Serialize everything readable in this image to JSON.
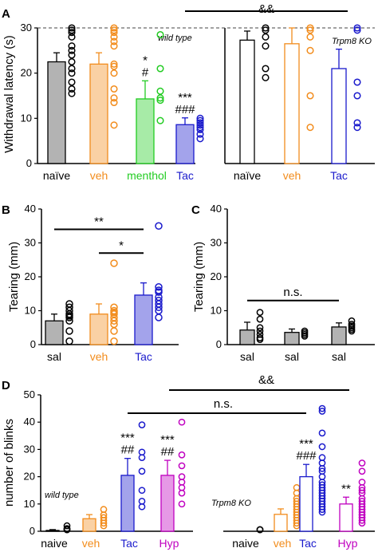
{
  "panels": {
    "A": {
      "label": "A",
      "ylabel": "Withdrawal latency (s)",
      "ylim": [
        0,
        30
      ],
      "yticks": [
        "0",
        "10",
        "20",
        "30"
      ],
      "ceiling_value": 30,
      "sig_top": "&&",
      "groups": [
        {
          "note": "wild type",
          "categories": [
            {
              "name": "naïve",
              "color": "#000000",
              "mean": 22.5,
              "sem": 2.0,
              "points": [
                30,
                29.5,
                29,
                28,
                26,
                25,
                24,
                22.5,
                21,
                20,
                18,
                16.5,
                15.5
              ],
              "sig": [],
              "filled": true
            },
            {
              "name": "veh",
              "color": "#f28c1c",
              "mean": 22,
              "sem": 2.5,
              "points": [
                30,
                29.5,
                29,
                28,
                27,
                26,
                22,
                21.5,
                20,
                16.5,
                14.5,
                13.5,
                8.5
              ],
              "sig": [],
              "filled": true
            },
            {
              "name": "menthol",
              "color": "#22cc22",
              "mean": 14.3,
              "sem": 4.0,
              "points": [
                28.5,
                21,
                16,
                14.5,
                14,
                9.5
              ],
              "sig": [
                "*",
                "#"
              ],
              "filled": true
            },
            {
              "name": "Tac",
              "color": "#1a1acc",
              "mean": 8.6,
              "sem": 1.5,
              "points": [
                10,
                9.5,
                9,
                8.5,
                8,
                7.5,
                6.5,
                5.5
              ],
              "sig": [
                "***",
                "###"
              ],
              "filled": true
            }
          ]
        },
        {
          "note": "Trpm8 KO",
          "categories": [
            {
              "name": "naïve",
              "color": "#000000",
              "mean": 27.3,
              "sem": 2.0,
              "points": [
                30,
                29.5,
                28,
                26,
                21,
                19
              ],
              "sig": [],
              "filled": false
            },
            {
              "name": "veh",
              "color": "#f28c1c",
              "mean": 26.5,
              "sem": 3.5,
              "points": [
                30,
                29.5,
                28,
                25,
                15,
                8
              ],
              "sig": [],
              "filled": false
            },
            {
              "name": "Tac",
              "color": "#1a1acc",
              "mean": 21,
              "sem": 4.3,
              "points": [
                30,
                29.5,
                18,
                15,
                9,
                8
              ],
              "sig": [],
              "filled": false
            }
          ]
        }
      ]
    },
    "B": {
      "label": "B",
      "ylabel": "Tearing (mm)",
      "ylim": [
        0,
        40
      ],
      "yticks": [
        "0",
        "10",
        "20",
        "30",
        "40"
      ],
      "categories": [
        {
          "name": "sal",
          "color": "#000000",
          "mean": 7,
          "sem": 2.0,
          "points": [
            12,
            11,
            10,
            9,
            8.5,
            8,
            7,
            4,
            1
          ],
          "filled": true
        },
        {
          "name": "veh",
          "color": "#f28c1c",
          "mean": 9,
          "sem": 3.0,
          "points": [
            24,
            11,
            10,
            9.5,
            9,
            8,
            7,
            6,
            4,
            1
          ],
          "filled": true
        },
        {
          "name": "Tac",
          "color": "#1a1acc",
          "mean": 14.6,
          "sem": 3.6,
          "points": [
            35,
            17,
            16,
            15.5,
            14,
            13,
            12,
            11,
            10,
            8
          ],
          "filled": true
        }
      ],
      "brackets": [
        {
          "text": "**",
          "from": 0,
          "to": 2,
          "y": 34
        },
        {
          "text": "*",
          "from": 1,
          "to": 2,
          "y": 27
        }
      ]
    },
    "C": {
      "label": "C",
      "ylabel": "Tearing (mm)",
      "ylim": [
        0,
        40
      ],
      "yticks": [
        "0",
        "10",
        "20",
        "30",
        "40"
      ],
      "categories": [
        {
          "name": "sal",
          "color": "#000000",
          "mean": 4.3,
          "sem": 2.3,
          "points": [
            9.5,
            7.5,
            5,
            4,
            3,
            2,
            1.5
          ],
          "filled": true
        },
        {
          "name": "sal",
          "color": "#000000",
          "mean": 3.6,
          "sem": 1.0,
          "points": [
            4,
            3.5,
            3,
            2.5
          ],
          "filled": true
        },
        {
          "name": "sal",
          "color": "#000000",
          "mean": 5.2,
          "sem": 1.2,
          "points": [
            7,
            6,
            5.5,
            5,
            4.5,
            4
          ],
          "filled": true
        }
      ],
      "brackets": [
        {
          "text": "n.s.",
          "from": 0,
          "to": 2,
          "y": 13
        }
      ]
    },
    "D": {
      "label": "D",
      "ylabel": "number of blinks",
      "ylim": [
        0,
        50
      ],
      "yticks": [
        "0",
        "10",
        "20",
        "30",
        "40",
        "50"
      ],
      "top_brackets": [
        {
          "text": "&&"
        },
        {
          "text": "n.s."
        }
      ],
      "groups": [
        {
          "note": "wild type",
          "categories": [
            {
              "name": "naive",
              "color": "#000000",
              "mean": 0.3,
              "sem": 0.3,
              "points": [
                2,
                1,
                0.5,
                0
              ],
              "sig": [],
              "filled": true
            },
            {
              "name": "veh",
              "color": "#f28c1c",
              "mean": 4.6,
              "sem": 1.5,
              "points": [
                8,
                6,
                5,
                4,
                3,
                2
              ],
              "sig": [],
              "filled": true
            },
            {
              "name": "Tac",
              "color": "#1a1acc",
              "mean": 20.5,
              "sem": 6.2,
              "points": [
                39,
                29,
                27,
                22,
                15,
                11,
                9
              ],
              "sig": [
                "***",
                "##"
              ],
              "filled": true
            },
            {
              "name": "Hyp",
              "color": "#c000c0",
              "mean": 20.5,
              "sem": 5.5,
              "points": [
                40,
                28,
                24,
                20,
                18,
                16,
                14,
                10
              ],
              "sig": [
                "***",
                "##"
              ],
              "filled": true
            }
          ]
        },
        {
          "note": "Trpm8 KO",
          "categories": [
            {
              "name": "naive",
              "color": "#000000",
              "mean": 0,
              "sem": 0,
              "points": [
                0.5,
                0
              ],
              "sig": [],
              "filled": false
            },
            {
              "name": "veh",
              "color": "#f28c1c",
              "mean": 6.2,
              "sem": 2.0,
              "points": [
                16,
                14,
                12,
                11,
                10,
                9,
                8,
                7,
                6,
                5,
                4,
                3,
                2
              ],
              "sig": [],
              "filled": false
            },
            {
              "name": "Tac",
              "color": "#1a1acc",
              "mean": 20,
              "sem": 4.5,
              "points": [
                45,
                44,
                36,
                31,
                27,
                25,
                23,
                22,
                20,
                18,
                17,
                16,
                15,
                14,
                13,
                12,
                11,
                10,
                9,
                8,
                7
              ],
              "sig": [
                "***",
                "###"
              ],
              "filled": false
            },
            {
              "name": "Hyp",
              "color": "#c000c0",
              "mean": 10,
              "sem": 2.5,
              "points": [
                25,
                22,
                18,
                16,
                15,
                14,
                12,
                11,
                10,
                9,
                8,
                7,
                6,
                5,
                4,
                3
              ],
              "sig": [
                "**"
              ],
              "filled": false
            }
          ]
        }
      ]
    }
  }
}
